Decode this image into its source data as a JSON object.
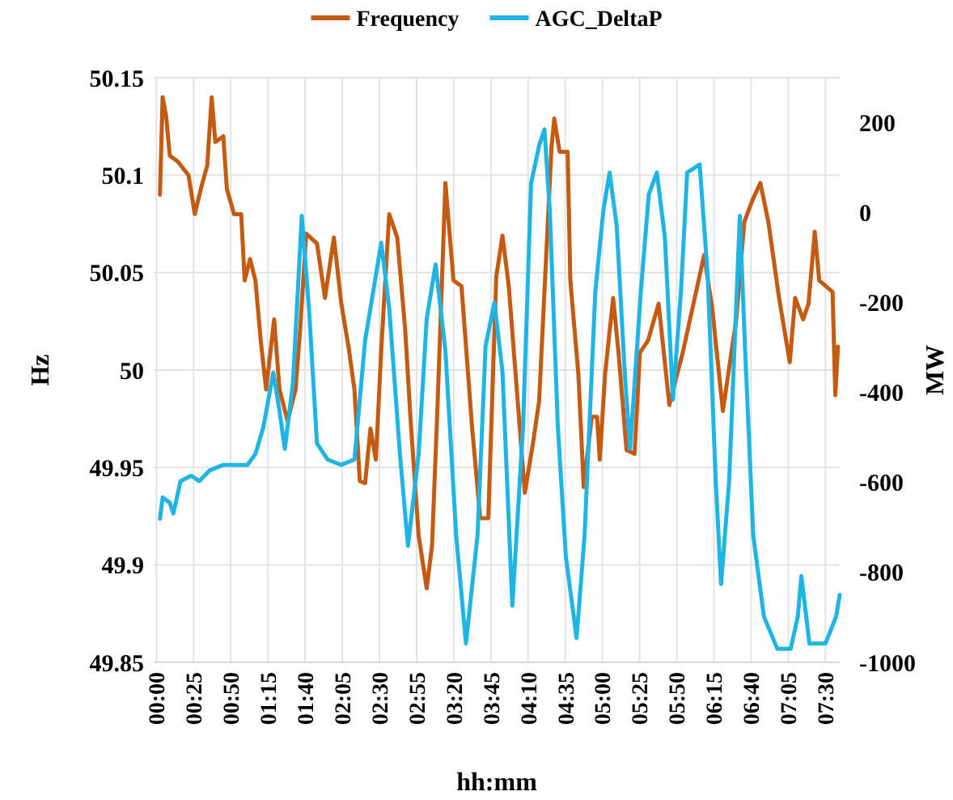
{
  "chart_data": {
    "type": "line",
    "xlabel": "hh:mm",
    "ylabel": "Hz",
    "y2label": "MW",
    "legend": "top",
    "grid": true,
    "marker": "none",
    "line_style": "solid",
    "xlim": [
      -0.03,
      7.66
    ],
    "xticks": [
      {
        "value": 0,
        "label": "00:00"
      },
      {
        "value": 0.4167,
        "label": "00:25"
      },
      {
        "value": 0.8333,
        "label": "00:50"
      },
      {
        "value": 1.25,
        "label": "01:15"
      },
      {
        "value": 1.6667,
        "label": "01:40"
      },
      {
        "value": 2.0833,
        "label": "02:05"
      },
      {
        "value": 2.5,
        "label": "02:30"
      },
      {
        "value": 2.9167,
        "label": "02:55"
      },
      {
        "value": 3.3333,
        "label": "03:20"
      },
      {
        "value": 3.75,
        "label": "03:45"
      },
      {
        "value": 4.1667,
        "label": "04:10"
      },
      {
        "value": 4.5833,
        "label": "04:35"
      },
      {
        "value": 5,
        "label": "05:00"
      },
      {
        "value": 5.4167,
        "label": "05:25"
      },
      {
        "value": 5.8333,
        "label": "05:50"
      },
      {
        "value": 6.25,
        "label": "06:15"
      },
      {
        "value": 6.6667,
        "label": "06:40"
      },
      {
        "value": 7.0833,
        "label": "07:05"
      },
      {
        "value": 7.5,
        "label": "07:30"
      }
    ],
    "ylim": [
      49.85,
      50.15
    ],
    "yticks": [
      49.85,
      {
        "value": 49.9,
        "label": "49.9"
      },
      49.95,
      {
        "value": 50,
        "label": "50"
      },
      50.05,
      {
        "value": 50.1,
        "label": "50.1"
      },
      50.15
    ],
    "y2lim": [
      -1000,
      300
    ],
    "y2ticks": [
      -1000,
      -800,
      -600,
      -400,
      -200,
      0,
      200
    ],
    "series": [
      {
        "name": "Frequency",
        "color": "#c55a11",
        "x": [
          0.04,
          0.07,
          0.11,
          0.15,
          0.24,
          0.36,
          0.43,
          0.51,
          0.57,
          0.62,
          0.66,
          0.75,
          0.79,
          0.87,
          0.95,
          0.99,
          1.05,
          1.11,
          1.17,
          1.23,
          1.32,
          1.38,
          1.47,
          1.56,
          1.61,
          1.68,
          1.8,
          1.89,
          1.99,
          2.07,
          2.16,
          2.22,
          2.28,
          2.34,
          2.4,
          2.46,
          2.52,
          2.61,
          2.7,
          2.79,
          2.85,
          2.94,
          3.03,
          3.09,
          3.15,
          3.24,
          3.33,
          3.42,
          3.54,
          3.63,
          3.72,
          3.81,
          3.88,
          3.95,
          4.04,
          4.13,
          4.22,
          4.29,
          4.37,
          4.43,
          4.46,
          4.52,
          4.61,
          4.64,
          4.73,
          4.79,
          4.88,
          4.94,
          4.97,
          5.03,
          5.12,
          5.18,
          5.27,
          5.36,
          5.42,
          5.51,
          5.63,
          5.75,
          5.81,
          5.9,
          6.02,
          6.14,
          6.23,
          6.35,
          6.5,
          6.59,
          6.68,
          6.77,
          6.86,
          6.98,
          7.1,
          7.16,
          7.25,
          7.31,
          7.38,
          7.43,
          7.58,
          7.61,
          7.64
        ],
        "values": [
          50.09,
          50.14,
          50.13,
          50.11,
          50.107,
          50.1,
          50.08,
          50.095,
          50.105,
          50.14,
          50.117,
          50.12,
          50.093,
          50.08,
          50.08,
          50.046,
          50.057,
          50.046,
          50.015,
          49.99,
          50.026,
          49.99,
          49.974,
          49.99,
          50.02,
          50.07,
          50.065,
          50.037,
          50.068,
          50.035,
          50.01,
          49.99,
          49.943,
          49.942,
          49.97,
          49.954,
          50.01,
          50.08,
          50.068,
          50.02,
          49.974,
          49.915,
          49.888,
          49.91,
          49.98,
          50.096,
          50.046,
          50.043,
          49.97,
          49.924,
          49.924,
          50.048,
          50.069,
          50.043,
          49.99,
          49.937,
          49.962,
          49.984,
          50.059,
          50.115,
          50.129,
          50.112,
          50.112,
          50.046,
          49.998,
          49.94,
          49.976,
          49.976,
          49.954,
          49.998,
          50.037,
          50.009,
          49.959,
          49.957,
          50.009,
          50.015,
          50.034,
          49.982,
          49.993,
          50.009,
          50.034,
          50.059,
          50.032,
          49.979,
          50.026,
          50.076,
          50.087,
          50.096,
          50.076,
          50.037,
          50.004,
          50.037,
          50.026,
          50.034,
          50.071,
          50.046,
          50.04,
          49.987,
          50.012
        ]
      },
      {
        "name": "AGC_DeltaP",
        "color": "#1fb4e6",
        "axis": "y2",
        "x": [
          0.04,
          0.07,
          0.15,
          0.19,
          0.27,
          0.39,
          0.48,
          0.6,
          0.75,
          1.02,
          1.11,
          1.2,
          1.31,
          1.37,
          1.44,
          1.53,
          1.63,
          1.71,
          1.8,
          1.92,
          2.07,
          2.22,
          2.28,
          2.34,
          2.43,
          2.52,
          2.61,
          2.73,
          2.82,
          2.94,
          3.03,
          3.13,
          3.24,
          3.36,
          3.47,
          3.6,
          3.69,
          3.79,
          3.88,
          3.99,
          4.11,
          4.2,
          4.29,
          4.35,
          4.41,
          4.5,
          4.59,
          4.71,
          4.8,
          4.92,
          5.01,
          5.08,
          5.16,
          5.25,
          5.31,
          5.43,
          5.52,
          5.61,
          5.7,
          5.79,
          5.88,
          5.95,
          6.09,
          6.18,
          6.27,
          6.33,
          6.42,
          6.54,
          6.6,
          6.69,
          6.81,
          6.96,
          7.11,
          7.19,
          7.23,
          7.32,
          7.5,
          7.62,
          7.66
        ],
        "values": [
          -681,
          -633,
          -645,
          -669,
          -597,
          -585,
          -597,
          -573,
          -561,
          -561,
          -537,
          -476,
          -356,
          -428,
          -525,
          -380,
          -7,
          -212,
          -513,
          -549,
          -561,
          -549,
          -416,
          -284,
          -176,
          -67,
          -212,
          -537,
          -741,
          -537,
          -236,
          -115,
          -308,
          -717,
          -958,
          -717,
          -296,
          -200,
          -356,
          -874,
          -476,
          65,
          149,
          185,
          5,
          -476,
          -765,
          -946,
          -717,
          -176,
          5,
          89,
          -30,
          -356,
          -525,
          -176,
          41,
          89,
          -55,
          -416,
          -176,
          89,
          107,
          -140,
          -597,
          -826,
          -597,
          -7,
          -308,
          -717,
          -898,
          -970,
          -970,
          -898,
          -808,
          -958,
          -958,
          -898,
          -850
        ]
      }
    ]
  }
}
